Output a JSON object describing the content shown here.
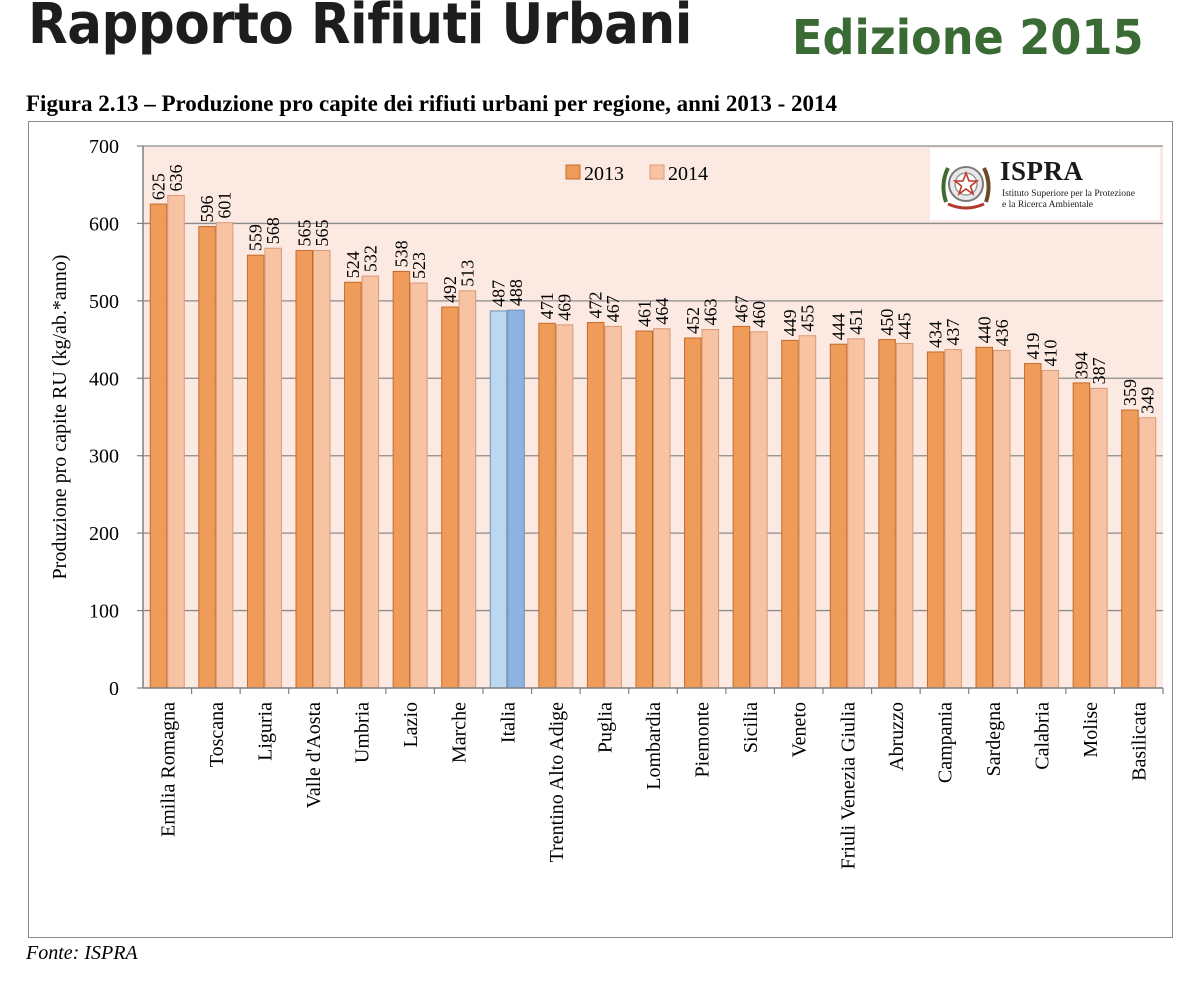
{
  "header": {
    "title": "Rapporto Rifiuti Urbani",
    "edition": "Edizione 2015"
  },
  "figure": {
    "caption": "Figura 2.13 – Produzione pro capite dei rifiuti urbani per regione, anni 2013 - 2014",
    "source": "Fonte: ISPRA"
  },
  "logo": {
    "name": "ISPRA",
    "subtitle_line1": "Istituto Superiore per la Protezione",
    "subtitle_line2": "e la Ricerca Ambientale",
    "emblem": "italian-republic-emblem-icon"
  },
  "chart_data": {
    "type": "bar",
    "ylabel": "Produzione pro capite RU (kg/ab.*anno)",
    "xlabel": "",
    "ylim": [
      0,
      700
    ],
    "yticks": [
      0,
      100,
      200,
      300,
      400,
      500,
      600,
      700
    ],
    "grid": true,
    "legend_position": "top-center",
    "highlight_category": "Italia",
    "categories": [
      "Emilia Romagna",
      "Toscana",
      "Liguria",
      "Valle d'Aosta",
      "Umbria",
      "Lazio",
      "Marche",
      "Italia",
      "Trentino Alto Adige",
      "Puglia",
      "Lombardia",
      "Piemonte",
      "Sicilia",
      "Veneto",
      "Friuli Venezia Giulia",
      "Abruzzo",
      "Campania",
      "Sardegna",
      "Calabria",
      "Molise",
      "Basilicata"
    ],
    "series": [
      {
        "name": "2013",
        "color": "#ef9c5a",
        "highlight_color": "#bdd7ee",
        "values": [
          625,
          596,
          559,
          565,
          524,
          538,
          492,
          487,
          471,
          472,
          461,
          452,
          467,
          449,
          444,
          450,
          434,
          440,
          419,
          394,
          359
        ]
      },
      {
        "name": "2014",
        "color": "#f8c3a3",
        "highlight_color": "#8db3e2",
        "values": [
          636,
          601,
          568,
          565,
          532,
          523,
          513,
          488,
          469,
          467,
          464,
          463,
          460,
          455,
          451,
          445,
          437,
          436,
          410,
          387,
          349
        ]
      }
    ],
    "colors": {
      "plot_background": "#fbe9e2",
      "gridline": "#8c8c8c",
      "bar_outline_2013": "#c66a2a",
      "bar_outline_2014": "#d89a78",
      "bar_outline_highlight": "#6b8fb8"
    }
  }
}
